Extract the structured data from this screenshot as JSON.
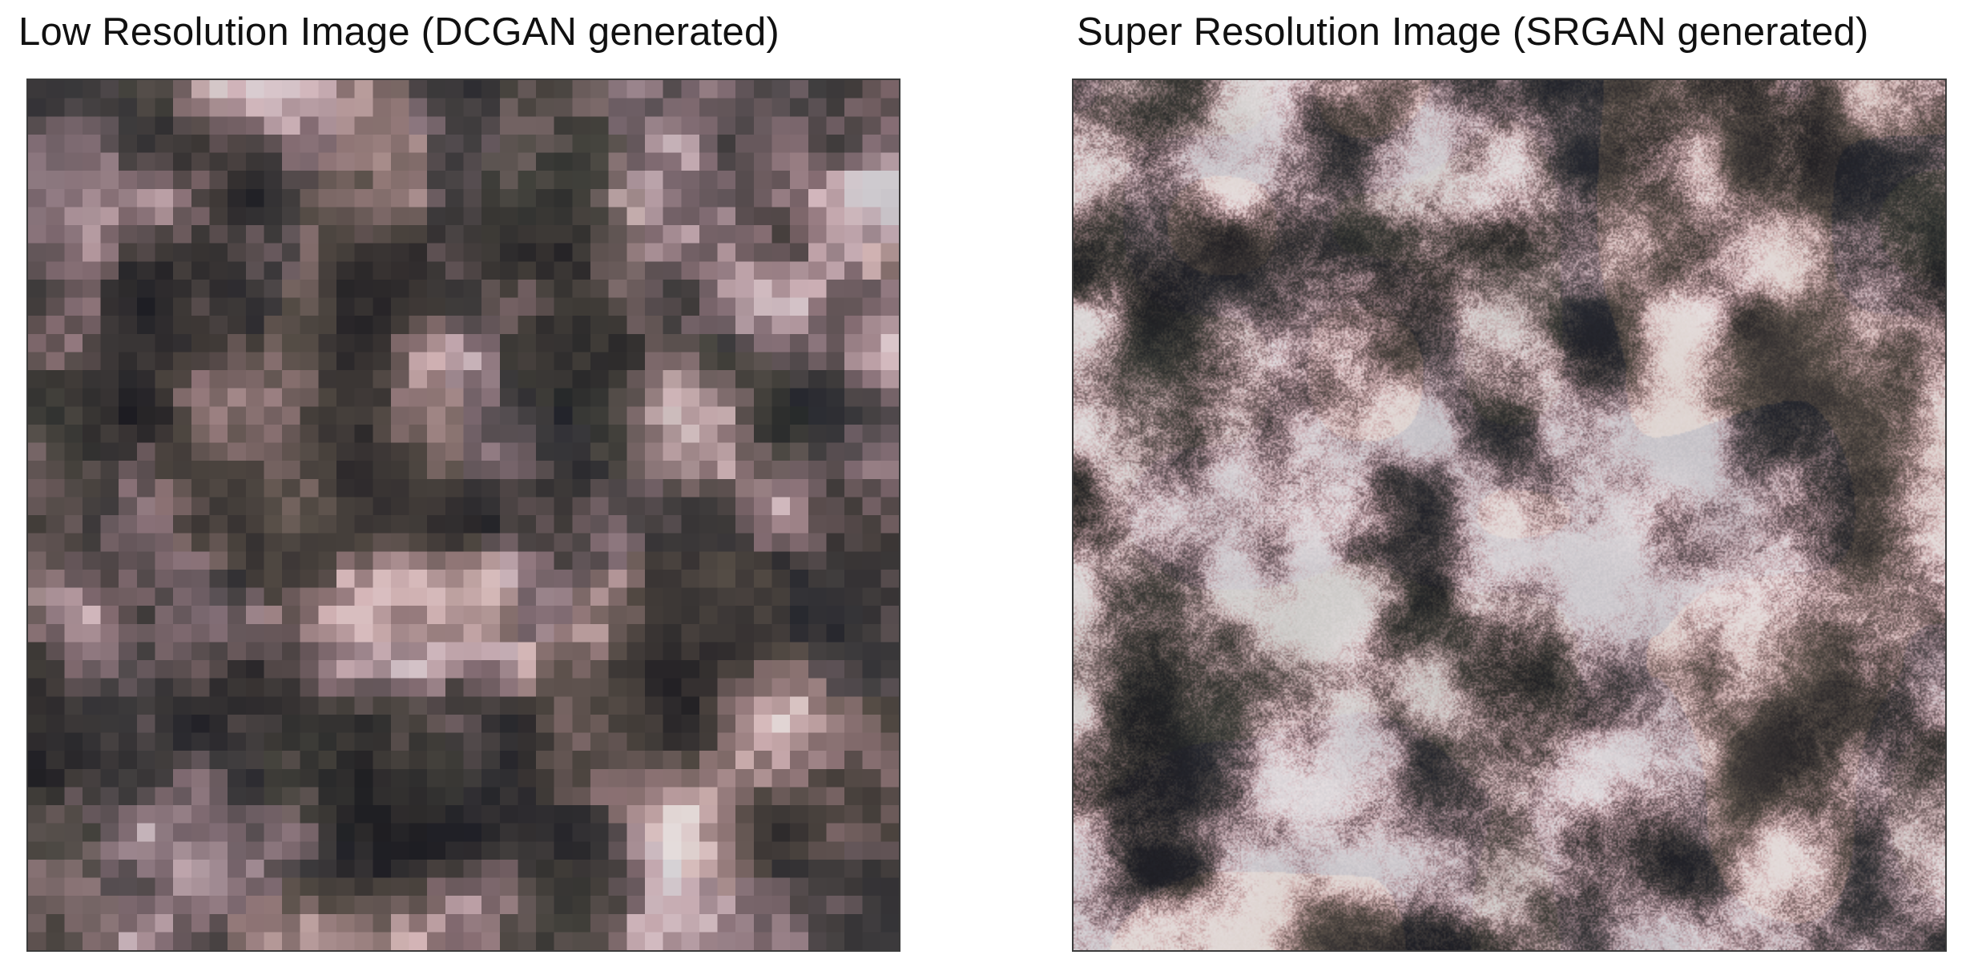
{
  "panels": [
    {
      "title": "Low Resolution Image (DCGAN generated)",
      "image": "dcgan-low-resolution-texture"
    },
    {
      "title": "Super Resolution Image (SRGAN generated)",
      "image": "srgan-super-resolution-texture"
    }
  ],
  "palette": {
    "dark": "#1c1b20",
    "mid_dark": "#3f3936",
    "mauve": "#8a6f74",
    "light": "#e9e2e4",
    "pink": "#d8b8bd",
    "green": "#5e6f5c",
    "blue": "#4a5566",
    "tan": "#b9a58c"
  }
}
